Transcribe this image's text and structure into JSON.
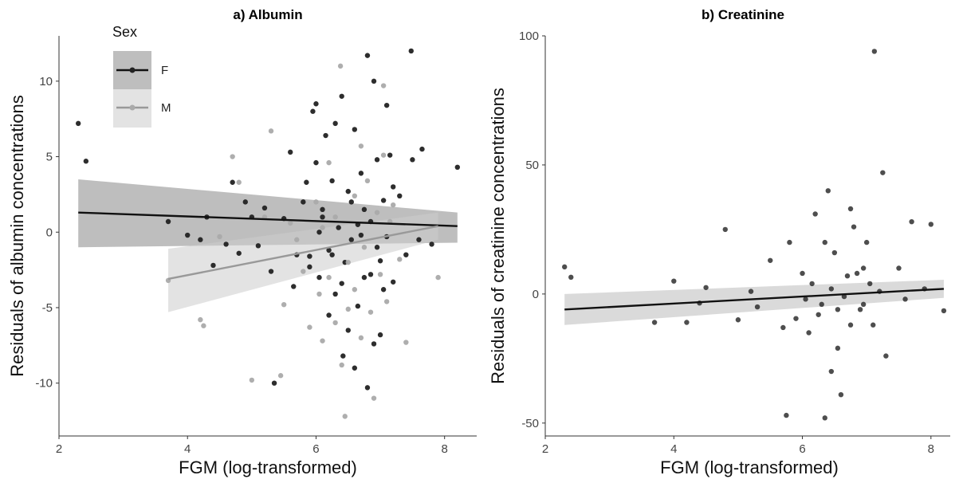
{
  "chart_data": [
    {
      "type": "scatter",
      "title": "a) Albumin",
      "xlabel": "FGM (log-transformed)",
      "ylabel": "Residuals of albumin concentrations",
      "xlim": [
        2,
        8.5
      ],
      "ylim": [
        -13.5,
        13
      ],
      "xticks": [
        2,
        4,
        6,
        8
      ],
      "yticks": [
        -10,
        -5,
        0,
        5,
        10
      ],
      "legend": {
        "title": "Sex",
        "placement": "top-left",
        "entries": [
          "F",
          "M"
        ]
      },
      "grid": false,
      "series": [
        {
          "name": "F",
          "color": "#222222",
          "ribbon_color": "#888888",
          "fit_line": {
            "x": [
              2.3,
              8.2
            ],
            "y": [
              1.3,
              0.4
            ]
          },
          "ci_band": {
            "x": [
              2.3,
              8.2
            ],
            "lower": [
              -1.0,
              -0.7
            ],
            "upper": [
              3.5,
              1.3
            ]
          },
          "points": [
            [
              2.3,
              7.2
            ],
            [
              2.42,
              4.7
            ],
            [
              3.7,
              0.7
            ],
            [
              4.0,
              -0.2
            ],
            [
              4.2,
              -0.5
            ],
            [
              4.3,
              1.0
            ],
            [
              4.4,
              -2.2
            ],
            [
              4.6,
              -0.8
            ],
            [
              4.7,
              3.3
            ],
            [
              4.9,
              2.0
            ],
            [
              4.8,
              -1.4
            ],
            [
              5.0,
              1.0
            ],
            [
              5.1,
              -0.9
            ],
            [
              5.2,
              1.6
            ],
            [
              5.3,
              -2.6
            ],
            [
              5.35,
              -10.0
            ],
            [
              5.5,
              0.9
            ],
            [
              5.6,
              5.3
            ],
            [
              5.65,
              -3.6
            ],
            [
              5.7,
              -1.5
            ],
            [
              5.8,
              2.0
            ],
            [
              5.9,
              -2.3
            ],
            [
              5.95,
              8.0
            ],
            [
              6.0,
              4.6
            ],
            [
              6.05,
              -3.0
            ],
            [
              6.1,
              1.5
            ],
            [
              6.15,
              6.4
            ],
            [
              6.2,
              -1.2
            ],
            [
              6.25,
              3.4
            ],
            [
              6.3,
              -4.1
            ],
            [
              6.35,
              0.3
            ],
            [
              6.4,
              9.0
            ],
            [
              6.45,
              -2.0
            ],
            [
              6.5,
              2.7
            ],
            [
              6.55,
              -0.5
            ],
            [
              6.6,
              6.8
            ],
            [
              6.65,
              -4.9
            ],
            [
              6.7,
              3.9
            ],
            [
              6.75,
              -3.0
            ],
            [
              6.8,
              11.7
            ],
            [
              6.85,
              0.7
            ],
            [
              6.9,
              -7.4
            ],
            [
              6.95,
              4.8
            ],
            [
              7.0,
              -1.9
            ],
            [
              7.05,
              2.1
            ],
            [
              7.1,
              -0.3
            ],
            [
              7.15,
              5.1
            ],
            [
              7.2,
              -3.3
            ],
            [
              7.3,
              2.4
            ],
            [
              7.4,
              -1.5
            ],
            [
              7.48,
              12.0
            ],
            [
              7.5,
              4.8
            ],
            [
              7.6,
              -0.5
            ],
            [
              7.65,
              5.5
            ],
            [
              7.8,
              -0.8
            ],
            [
              8.2,
              4.3
            ],
            [
              6.42,
              -8.2
            ],
            [
              6.6,
              -9.0
            ],
            [
              6.8,
              -10.3
            ],
            [
              5.9,
              -1.6
            ],
            [
              6.0,
              8.5
            ],
            [
              6.2,
              -5.5
            ],
            [
              6.3,
              7.2
            ],
            [
              6.5,
              -6.5
            ],
            [
              6.7,
              -0.2
            ],
            [
              6.9,
              10.0
            ],
            [
              7.0,
              -6.8
            ],
            [
              7.2,
              3.0
            ],
            [
              6.1,
              1.0
            ],
            [
              6.4,
              -3.4
            ],
            [
              6.65,
              0.5
            ],
            [
              6.85,
              -2.8
            ],
            [
              7.05,
              -3.8
            ],
            [
              6.55,
              2.0
            ],
            [
              6.25,
              -1.5
            ],
            [
              5.85,
              3.3
            ],
            [
              6.75,
              1.5
            ],
            [
              6.95,
              -1.0
            ],
            [
              7.1,
              8.4
            ],
            [
              6.05,
              0.0
            ]
          ]
        },
        {
          "name": "M",
          "color": "#aaaaaa",
          "ribbon_color": "#cccccc",
          "fit_line": {
            "x": [
              3.7,
              7.9
            ],
            "y": [
              -3.1,
              0.4
            ]
          },
          "ci_band": {
            "x": [
              3.7,
              7.9
            ],
            "lower": [
              -5.3,
              -0.5
            ],
            "upper": [
              -1.1,
              1.3
            ]
          },
          "points": [
            [
              3.7,
              -3.2
            ],
            [
              4.2,
              -5.8
            ],
            [
              4.25,
              -6.2
            ],
            [
              4.5,
              -0.3
            ],
            [
              4.7,
              5.0
            ],
            [
              4.8,
              3.3
            ],
            [
              5.0,
              -9.8
            ],
            [
              5.2,
              1.0
            ],
            [
              5.3,
              6.7
            ],
            [
              5.45,
              -9.5
            ],
            [
              5.5,
              -4.8
            ],
            [
              5.6,
              0.6
            ],
            [
              5.7,
              -0.5
            ],
            [
              5.8,
              -2.6
            ],
            [
              5.9,
              -6.3
            ],
            [
              6.0,
              2.0
            ],
            [
              6.1,
              -7.2
            ],
            [
              6.2,
              -3.0
            ],
            [
              6.3,
              1.0
            ],
            [
              6.38,
              11.0
            ],
            [
              6.45,
              -12.2
            ],
            [
              6.5,
              -5.1
            ],
            [
              6.6,
              2.4
            ],
            [
              6.7,
              -7.0
            ],
            [
              6.8,
              3.4
            ],
            [
              6.9,
              -11.0
            ],
            [
              7.0,
              -2.8
            ],
            [
              7.05,
              9.7
            ],
            [
              7.1,
              -4.6
            ],
            [
              7.2,
              1.8
            ],
            [
              7.3,
              -1.8
            ],
            [
              7.4,
              -7.3
            ],
            [
              7.9,
              -3.0
            ],
            [
              6.2,
              4.6
            ],
            [
              6.5,
              -2.0
            ],
            [
              6.4,
              -8.8
            ],
            [
              6.7,
              5.7
            ],
            [
              6.1,
              0.3
            ],
            [
              6.85,
              -5.3
            ],
            [
              7.15,
              0.7
            ],
            [
              6.6,
              -3.8
            ],
            [
              6.3,
              -6.0
            ],
            [
              6.05,
              -4.1
            ],
            [
              6.95,
              1.3
            ],
            [
              6.75,
              -1.0
            ],
            [
              7.05,
              5.1
            ]
          ]
        }
      ]
    },
    {
      "type": "scatter",
      "title": "b) Creatinine",
      "xlabel": "FGM (log-transformed)",
      "ylabel": "Residuals of creatinine concentrations",
      "xlim": [
        2,
        8.3
      ],
      "ylim": [
        -55,
        100
      ],
      "xticks": [
        2,
        4,
        6,
        8
      ],
      "yticks": [
        -50,
        0,
        50,
        100
      ],
      "grid": false,
      "series": [
        {
          "color": "#222222",
          "ribbon_color": "#bbbbbb",
          "fit_line": {
            "x": [
              2.3,
              8.2
            ],
            "y": [
              -6.0,
              2.0
            ]
          },
          "ci_band": {
            "x": [
              2.3,
              8.2
            ],
            "lower": [
              -12.0,
              -1.5
            ],
            "upper": [
              0.0,
              5.5
            ]
          },
          "points": [
            [
              2.3,
              10.5
            ],
            [
              2.4,
              6.5
            ],
            [
              3.7,
              -11.0
            ],
            [
              4.0,
              5.0
            ],
            [
              4.2,
              -11.0
            ],
            [
              4.4,
              -3.5
            ],
            [
              4.5,
              2.5
            ],
            [
              4.8,
              25.0
            ],
            [
              5.0,
              -10.0
            ],
            [
              5.2,
              1.0
            ],
            [
              5.3,
              -5.0
            ],
            [
              5.5,
              13.0
            ],
            [
              5.7,
              -13.0
            ],
            [
              5.75,
              -47.0
            ],
            [
              5.8,
              20.0
            ],
            [
              5.9,
              -9.5
            ],
            [
              6.0,
              8.0
            ],
            [
              6.1,
              -15.0
            ],
            [
              6.2,
              31.0
            ],
            [
              6.3,
              -4.0
            ],
            [
              6.35,
              -48.0
            ],
            [
              6.4,
              40.0
            ],
            [
              6.5,
              16.0
            ],
            [
              6.55,
              -21.0
            ],
            [
              6.6,
              -39.0
            ],
            [
              6.7,
              7.0
            ],
            [
              6.8,
              26.0
            ],
            [
              6.9,
              -6.0
            ],
            [
              7.0,
              20.0
            ],
            [
              7.1,
              -12.0
            ],
            [
              7.12,
              94.0
            ],
            [
              7.2,
              1.0
            ],
            [
              7.25,
              47.0
            ],
            [
              7.3,
              -24.0
            ],
            [
              7.5,
              10.0
            ],
            [
              7.6,
              -2.0
            ],
            [
              7.7,
              28.0
            ],
            [
              7.9,
              2.0
            ],
            [
              8.0,
              27.0
            ],
            [
              8.2,
              -6.5
            ],
            [
              6.05,
              -2.0
            ],
            [
              6.15,
              4.0
            ],
            [
              6.25,
              -8.0
            ],
            [
              6.45,
              2.0
            ],
            [
              6.65,
              -1.0
            ],
            [
              6.75,
              -12.0
            ],
            [
              6.85,
              8.0
            ],
            [
              6.95,
              -4.0
            ],
            [
              7.05,
              4.0
            ],
            [
              6.45,
              -30.0
            ],
            [
              6.35,
              20.0
            ],
            [
              6.75,
              33.0
            ],
            [
              6.55,
              -6.0
            ],
            [
              6.95,
              10.0
            ]
          ]
        }
      ]
    }
  ]
}
